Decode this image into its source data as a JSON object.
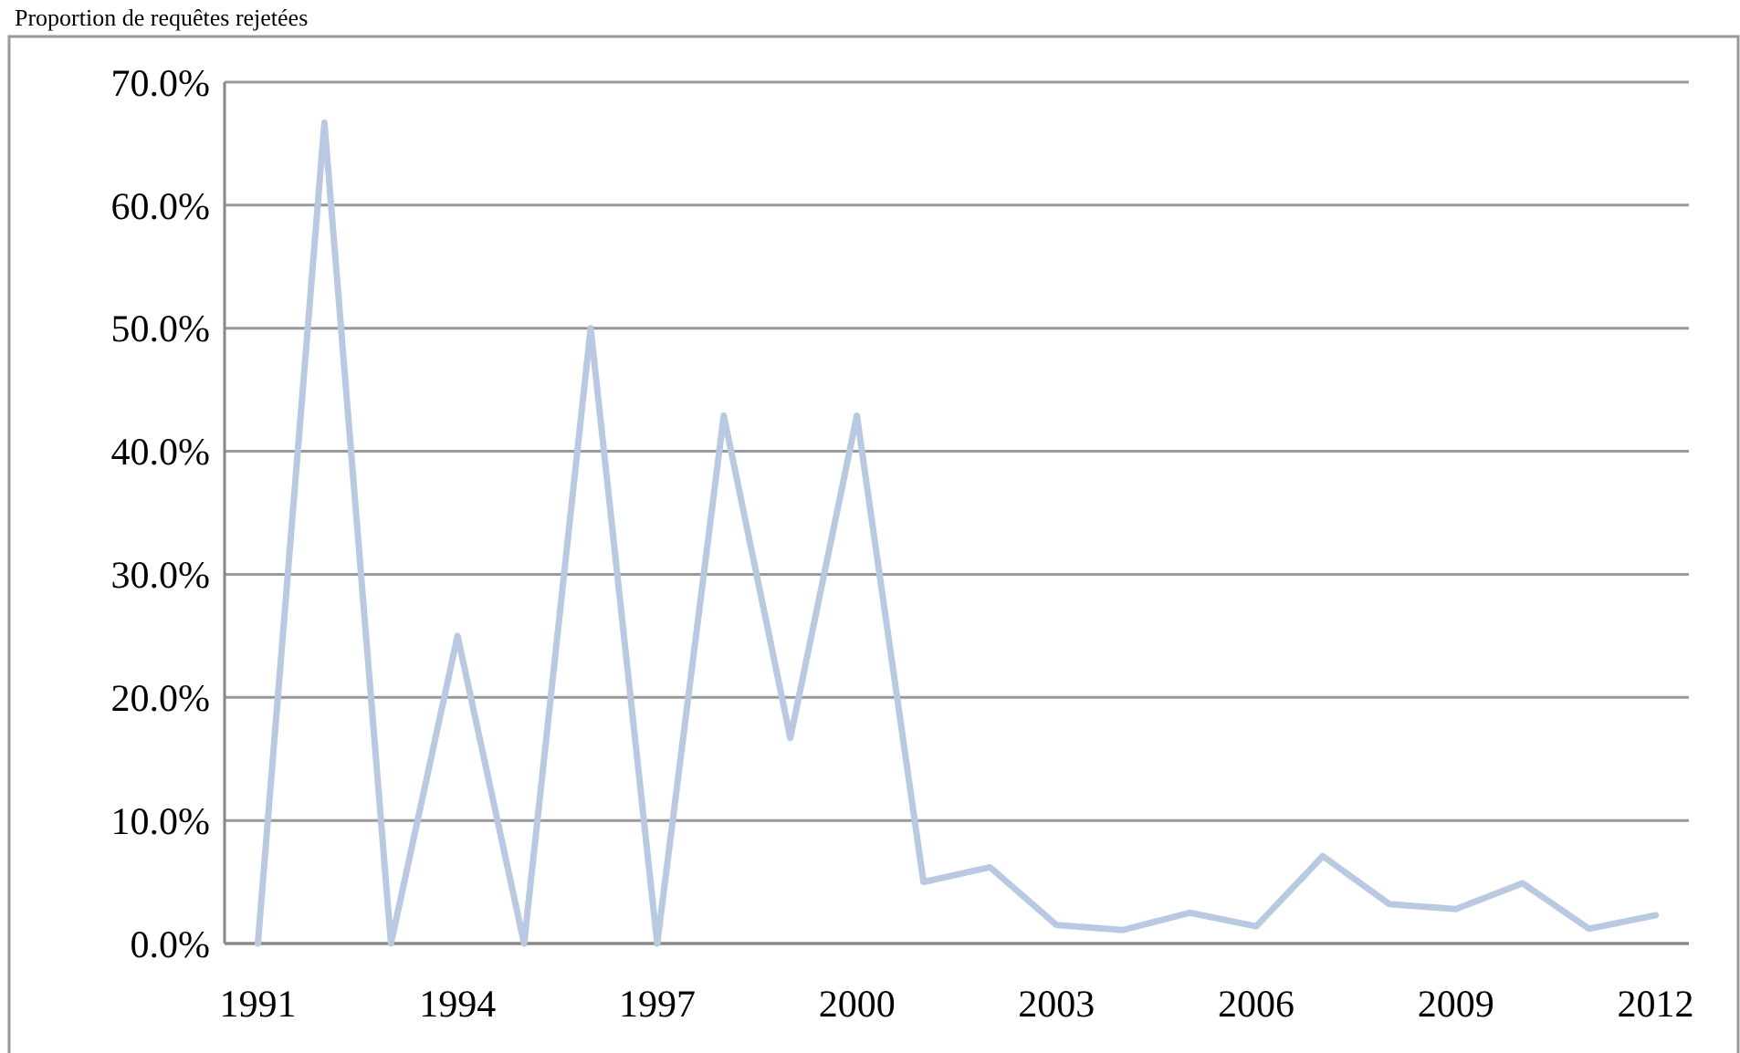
{
  "chart_data": {
    "type": "line",
    "title": "Proportion de requêtes rejetées",
    "categories": [
      "1991",
      null,
      null,
      "1994",
      null,
      null,
      "1997",
      null,
      null,
      "2000",
      null,
      null,
      "2003",
      null,
      null,
      "2006",
      null,
      null,
      "2009",
      null,
      null,
      "2012"
    ],
    "series": [
      {
        "color": "#b9c9e1",
        "values": [
          0,
          66.7,
          0,
          25,
          0,
          50,
          0,
          42.9,
          16.7,
          42.9,
          5.0,
          6.2,
          1.5,
          1.1,
          2.5,
          1.4,
          7.1,
          3.2,
          2.8,
          4.9,
          1.2,
          2.3
        ]
      }
    ],
    "ylim": [
      0,
      70
    ],
    "yticks": [
      {
        "value": 0,
        "label": "0.0%"
      },
      {
        "value": 10,
        "label": "10.0%"
      },
      {
        "value": 20,
        "label": "20.0%"
      },
      {
        "value": 30,
        "label": "30.0%"
      },
      {
        "value": 40,
        "label": "40.0%"
      },
      {
        "value": 50,
        "label": "50.0%"
      },
      {
        "value": 60,
        "label": "60.0%"
      },
      {
        "value": 70,
        "label": "70.0%"
      }
    ],
    "grid": "y",
    "marker": "none",
    "line_style": "solid"
  }
}
